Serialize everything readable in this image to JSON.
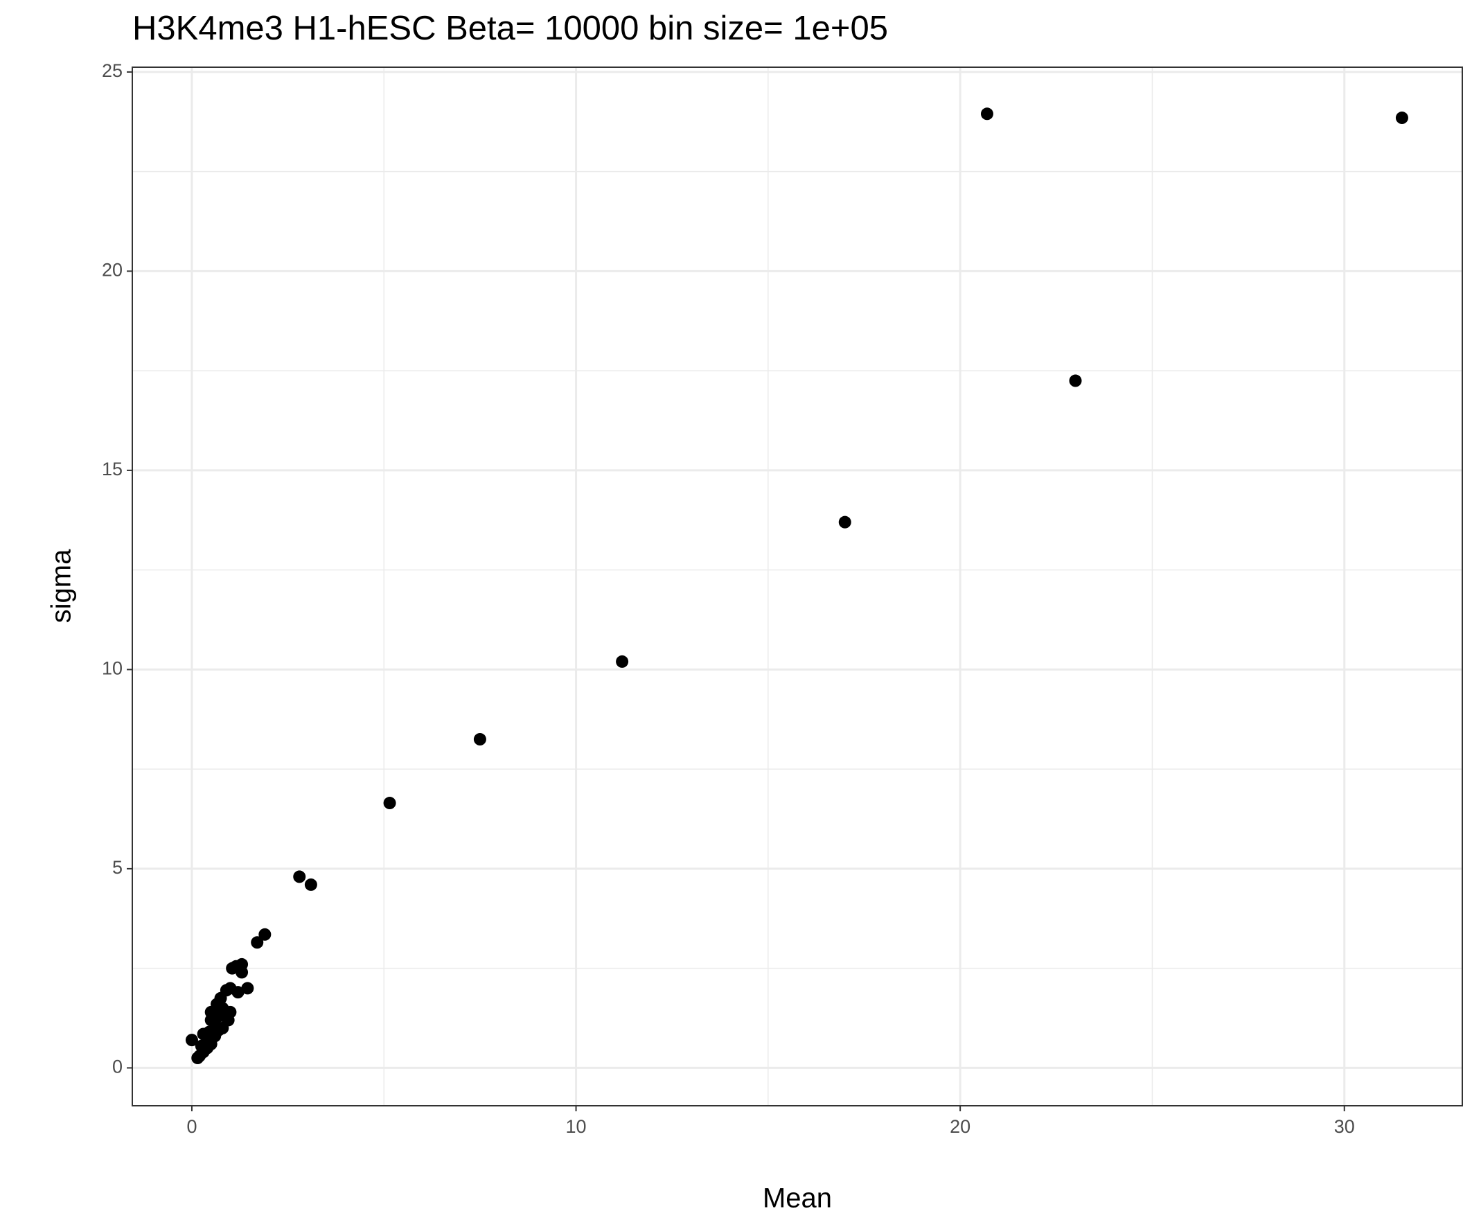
{
  "chart_data": {
    "type": "scatter",
    "title": "H3K4me3 H1-hESC  Beta=  10000  bin size=  1e+05",
    "x_label": "Mean",
    "y_label": "sigma",
    "xlim": [
      -1.55,
      33.07
    ],
    "ylim": [
      -0.95,
      25.12
    ],
    "xticks": [
      0,
      10,
      20,
      30
    ],
    "yticks": [
      0,
      5,
      10,
      15,
      20,
      25
    ],
    "x_minor_grid": [
      5,
      15,
      25
    ],
    "y_minor_grid": [
      2.5,
      7.5,
      12.5,
      17.5,
      22.5
    ],
    "grid": true,
    "color": "#000000",
    "x": [
      20.7,
      31.5,
      23.0,
      17.0,
      11.2,
      7.5,
      5.15,
      2.8,
      3.1,
      1.9,
      1.7,
      1.3,
      1.3,
      1.05,
      1.15,
      1.45,
      1.2,
      1.0,
      0.9,
      1.0,
      0.95,
      0.8,
      0.75,
      0.8,
      0.7,
      0.6,
      0.5,
      0.5,
      0.45,
      0.4,
      0.3,
      0.6,
      0.5,
      0.4,
      0.3,
      0.2,
      0.15,
      0.25,
      0.0,
      0.7,
      0.85,
      0.65
    ],
    "values": [
      23.95,
      23.85,
      17.25,
      13.7,
      10.2,
      8.25,
      6.65,
      4.8,
      4.6,
      3.35,
      3.15,
      2.6,
      2.4,
      2.5,
      2.55,
      2.0,
      1.9,
      2.0,
      1.95,
      1.4,
      1.2,
      1.5,
      1.75,
      1.0,
      1.3,
      1.1,
      1.4,
      1.2,
      0.9,
      0.8,
      0.85,
      0.8,
      0.6,
      0.5,
      0.4,
      0.3,
      0.25,
      0.55,
      0.7,
      0.95,
      1.3,
      1.6
    ]
  }
}
